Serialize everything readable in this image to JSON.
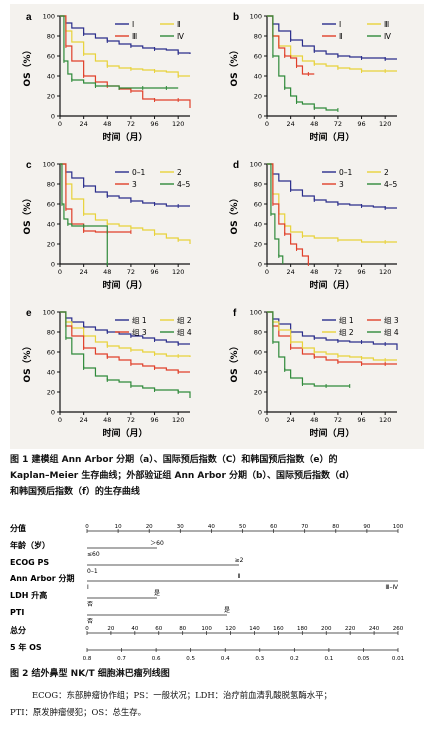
{
  "figure1": {
    "caption_line1": "图 1  建模组 Ann Arbor 分期（a）、国际预后指数（C）和韩国预后指数（e）的",
    "caption_line2": "Kaplan–Meier 生存曲线；外部验证组 Ann Arbor 分期（b）、国际预后指数（d）",
    "caption_line3": "和韩国预后指数（f）的生存曲线",
    "ylabel": "OS（%）",
    "xlabel": "时间（月）",
    "yticks": [
      "0",
      "20",
      "40",
      "60",
      "80",
      "100"
    ],
    "xticks": [
      "0",
      "24",
      "48",
      "72",
      "96",
      "120"
    ],
    "panels": [
      {
        "letter": "a",
        "legend": [
          "Ⅰ",
          "Ⅱ",
          "Ⅲ",
          "Ⅳ"
        ],
        "colors": [
          "#2a2e8c",
          "#e8d23a",
          "#e0402a",
          "#2f8a3a"
        ],
        "series": [
          {
            "x": [
              0,
              6,
              12,
              24,
              36,
              48,
              60,
              72,
              84,
              96,
              108,
              120,
              132
            ],
            "y": [
              100,
              93,
              88,
              82,
              78,
              75,
              72,
              70,
              68,
              67,
              66,
              63,
              62
            ]
          },
          {
            "x": [
              0,
              6,
              12,
              24,
              36,
              48,
              60,
              72,
              84,
              96,
              108,
              120,
              132
            ],
            "y": [
              100,
              85,
              74,
              62,
              55,
              50,
              48,
              47,
              46,
              45,
              44,
              40,
              40
            ]
          },
          {
            "x": [
              0,
              6,
              12,
              24,
              36,
              48,
              60,
              72,
              84,
              96,
              108,
              120,
              132
            ],
            "y": [
              100,
              70,
              55,
              40,
              34,
              30,
              27,
              25,
              17,
              16,
              16,
              16,
              8
            ]
          },
          {
            "x": [
              0,
              4,
              8,
              12,
              24,
              36,
              48,
              60,
              72,
              84,
              96,
              108,
              120
            ],
            "y": [
              100,
              55,
              42,
              36,
              33,
              30,
              30,
              28,
              28,
              28,
              28,
              28,
              28
            ]
          }
        ]
      },
      {
        "letter": "b",
        "legend": [
          "Ⅰ",
          "Ⅲ",
          "Ⅱ",
          "Ⅳ"
        ],
        "colors": [
          "#2a2e8c",
          "#e8d23a",
          "#e0402a",
          "#2f8a3a"
        ],
        "series": [
          {
            "x": [
              0,
              6,
              12,
              24,
              36,
              48,
              60,
              72,
              84,
              96,
              108,
              120,
              132
            ],
            "y": [
              100,
              92,
              85,
              76,
              70,
              65,
              62,
              60,
              59,
              58,
              58,
              57,
              57
            ]
          },
          {
            "x": [
              0,
              6,
              12,
              24,
              36,
              48,
              60,
              72,
              84,
              96,
              108,
              120,
              132
            ],
            "y": [
              100,
              80,
              70,
              60,
              55,
              52,
              50,
              48,
              47,
              45,
              45,
              45,
              45
            ]
          },
          {
            "x": [
              0,
              6,
              12,
              18,
              24,
              30,
              36,
              42,
              48
            ],
            "y": [
              100,
              80,
              68,
              60,
              58,
              50,
              42,
              42,
              42
            ]
          },
          {
            "x": [
              0,
              6,
              12,
              18,
              24,
              30,
              36,
              48,
              60,
              72
            ],
            "y": [
              100,
              60,
              40,
              28,
              20,
              14,
              12,
              8,
              6,
              6
            ]
          }
        ]
      },
      {
        "letter": "c",
        "legend": [
          "0–1",
          "2",
          "3",
          "4–5"
        ],
        "colors": [
          "#2a2e8c",
          "#e8d23a",
          "#e0402a",
          "#2f8a3a"
        ],
        "series": [
          {
            "x": [
              0,
              6,
              12,
              24,
              36,
              48,
              60,
              72,
              84,
              96,
              108,
              120,
              132
            ],
            "y": [
              100,
              92,
              86,
              78,
              72,
              68,
              66,
              63,
              61,
              60,
              58,
              58,
              58
            ]
          },
          {
            "x": [
              0,
              6,
              12,
              24,
              36,
              48,
              60,
              72,
              84,
              96,
              108,
              120,
              132
            ],
            "y": [
              100,
              80,
              65,
              50,
              44,
              40,
              38,
              36,
              34,
              30,
              26,
              24,
              20
            ]
          },
          {
            "x": [
              0,
              6,
              12,
              24,
              36,
              48,
              60,
              72
            ],
            "y": [
              100,
              55,
              40,
              33,
              32,
              32,
              32,
              32
            ]
          },
          {
            "x": [
              0,
              2,
              4,
              8,
              12,
              24,
              36,
              48
            ],
            "y": [
              100,
              60,
              45,
              40,
              38,
              38,
              38,
              0
            ]
          }
        ]
      },
      {
        "letter": "d",
        "legend": [
          "0–1",
          "2",
          "3",
          "4–5"
        ],
        "colors": [
          "#2a2e8c",
          "#e8d23a",
          "#e0402a",
          "#2f8a3a"
        ],
        "series": [
          {
            "x": [
              0,
              6,
              12,
              24,
              36,
              48,
              60,
              72,
              84,
              96,
              108,
              120,
              132
            ],
            "y": [
              100,
              90,
              83,
              74,
              68,
              64,
              62,
              60,
              59,
              58,
              57,
              56,
              56
            ]
          },
          {
            "x": [
              0,
              6,
              12,
              18,
              24,
              36,
              48,
              72,
              96,
              120,
              132
            ],
            "y": [
              100,
              70,
              50,
              38,
              32,
              28,
              26,
              24,
              22,
              22,
              22
            ]
          },
          {
            "x": [
              0,
              6,
              12,
              18,
              24,
              30,
              36,
              42
            ],
            "y": [
              100,
              60,
              40,
              30,
              20,
              15,
              8,
              0
            ]
          },
          {
            "x": [
              0,
              4,
              8,
              12,
              16
            ],
            "y": [
              100,
              50,
              25,
              8,
              0
            ]
          }
        ]
      },
      {
        "letter": "e",
        "legend": [
          "组 1",
          "组 2",
          "组 3",
          "组 4"
        ],
        "colors": [
          "#2a2e8c",
          "#e8d23a",
          "#e0402a",
          "#2f8a3a"
        ],
        "series": [
          {
            "x": [
              0,
              6,
              12,
              24,
              36,
              48,
              60,
              72,
              84,
              96,
              108,
              120,
              132
            ],
            "y": [
              100,
              94,
              90,
              85,
              82,
              80,
              78,
              76,
              74,
              72,
              70,
              68,
              68
            ]
          },
          {
            "x": [
              0,
              6,
              12,
              24,
              36,
              48,
              60,
              72,
              84,
              96,
              108,
              120,
              132
            ],
            "y": [
              100,
              90,
              84,
              76,
              70,
              66,
              64,
              62,
              60,
              58,
              56,
              56,
              55
            ]
          },
          {
            "x": [
              0,
              6,
              12,
              24,
              36,
              48,
              60,
              72,
              84,
              96,
              108,
              120,
              132
            ],
            "y": [
              100,
              86,
              76,
              64,
              58,
              55,
              52,
              48,
              46,
              44,
              42,
              40,
              40
            ]
          },
          {
            "x": [
              0,
              6,
              12,
              24,
              36,
              48,
              60,
              72,
              84,
              96,
              108,
              120,
              132
            ],
            "y": [
              100,
              74,
              58,
              44,
              36,
              32,
              30,
              26,
              24,
              22,
              22,
              20,
              14
            ]
          }
        ]
      },
      {
        "letter": "f",
        "legend": [
          "组 1",
          "组 3",
          "组 2",
          "组 4"
        ],
        "colors": [
          "#2a2e8c",
          "#e0402a",
          "#e8d23a",
          "#2f8a3a"
        ],
        "series": [
          {
            "x": [
              0,
              6,
              12,
              24,
              36,
              48,
              60,
              72,
              84,
              96,
              108,
              120,
              132
            ],
            "y": [
              100,
              93,
              88,
              80,
              76,
              74,
              72,
              71,
              70,
              70,
              68,
              68,
              62
            ]
          },
          {
            "x": [
              0,
              6,
              12,
              24,
              36,
              48,
              60,
              72,
              84,
              96,
              108,
              120,
              132
            ],
            "y": [
              100,
              86,
              76,
              64,
              58,
              55,
              52,
              50,
              50,
              48,
              48,
              48,
              48
            ]
          },
          {
            "x": [
              0,
              6,
              12,
              24,
              36,
              48,
              60,
              72,
              84,
              96,
              108,
              120,
              132
            ],
            "y": [
              100,
              90,
              82,
              70,
              64,
              60,
              58,
              56,
              55,
              54,
              52,
              52,
              52
            ]
          },
          {
            "x": [
              0,
              6,
              12,
              18,
              24,
              36,
              48,
              60,
              72,
              84
            ],
            "y": [
              100,
              70,
              55,
              42,
              34,
              28,
              26,
              26,
              26,
              26
            ]
          }
        ]
      }
    ]
  },
  "figure2": {
    "caption": "图 2  结外鼻型 NK/T 细胞淋巴瘤列线图",
    "rows": [
      {
        "label": "分值",
        "ticks": [
          "0",
          "10",
          "20",
          "30",
          "40",
          "50",
          "60",
          "70",
          "80",
          "90",
          "100"
        ]
      },
      {
        "label": "年龄（岁）",
        "a": "≤60",
        "b": "＞60"
      },
      {
        "label": "ECOG PS",
        "a": "0–1",
        "b": "≥2"
      },
      {
        "label": "Ann Arbor 分期",
        "a": "Ⅰ",
        "b": "Ⅱ",
        "c": "Ⅲ–Ⅳ"
      },
      {
        "label": "LDH 升高",
        "a": "否",
        "b": "是"
      },
      {
        "label": "PTI",
        "a": "否",
        "b": "是"
      },
      {
        "label": "总分",
        "ticks": [
          "0",
          "20",
          "40",
          "60",
          "80",
          "100",
          "120",
          "140",
          "160",
          "180",
          "200",
          "220",
          "240",
          "260"
        ]
      },
      {
        "label": "5 年 OS",
        "ticks": [
          "0.8",
          "0.7",
          "0.6",
          "0.5",
          "0.4",
          "0.3",
          "0.2",
          "0.1",
          "0.05",
          "0.01"
        ]
      }
    ]
  },
  "notes": {
    "line1": "ECOG：东部肿瘤协作组；PS：一般状况；LDH：治疗前血清乳酸脱氢酶水平；",
    "line2": "PTI：原发肿瘤侵犯；OS：总生存。"
  }
}
